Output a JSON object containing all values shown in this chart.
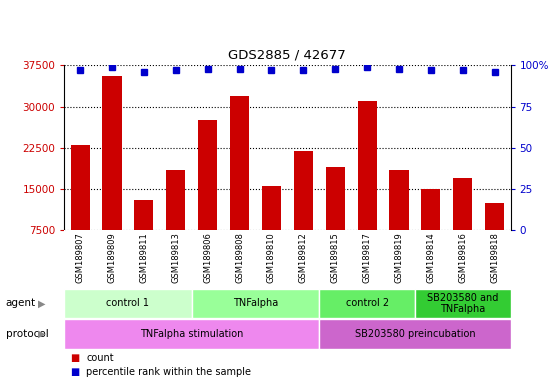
{
  "title": "GDS2885 / 42677",
  "samples": [
    "GSM189807",
    "GSM189809",
    "GSM189811",
    "GSM189813",
    "GSM189806",
    "GSM189808",
    "GSM189810",
    "GSM189812",
    "GSM189815",
    "GSM189817",
    "GSM189819",
    "GSM189814",
    "GSM189816",
    "GSM189818"
  ],
  "counts": [
    23000,
    35500,
    13000,
    18500,
    27500,
    32000,
    15500,
    22000,
    19000,
    31000,
    18500,
    15000,
    17000,
    12500
  ],
  "percentile_ranks": [
    97,
    99,
    96,
    97,
    98,
    98,
    97,
    97,
    98,
    99,
    98,
    97,
    97,
    96
  ],
  "bar_color": "#cc0000",
  "dot_color": "#0000cc",
  "ylim_left": [
    7500,
    37500
  ],
  "yticks_left": [
    7500,
    15000,
    22500,
    30000,
    37500
  ],
  "ylim_right": [
    0,
    100
  ],
  "yticks_right": [
    0,
    25,
    50,
    75,
    100
  ],
  "agent_groups": [
    {
      "label": "control 1",
      "start": 0,
      "end": 3,
      "color": "#ccffcc"
    },
    {
      "label": "TNFalpha",
      "start": 4,
      "end": 7,
      "color": "#99ff99"
    },
    {
      "label": "control 2",
      "start": 8,
      "end": 10,
      "color": "#66ee66"
    },
    {
      "label": "SB203580 and\nTNFalpha",
      "start": 11,
      "end": 13,
      "color": "#33cc33"
    }
  ],
  "protocol_groups": [
    {
      "label": "TNFalpha stimulation",
      "start": 0,
      "end": 7,
      "color": "#ee88ee"
    },
    {
      "label": "SB203580 preincubation",
      "start": 8,
      "end": 13,
      "color": "#cc66cc"
    }
  ],
  "background_color": "#ffffff",
  "tick_area_color": "#cccccc",
  "legend_items": [
    {
      "label": "count",
      "color": "#cc0000"
    },
    {
      "label": "percentile rank within the sample",
      "color": "#0000cc"
    }
  ]
}
